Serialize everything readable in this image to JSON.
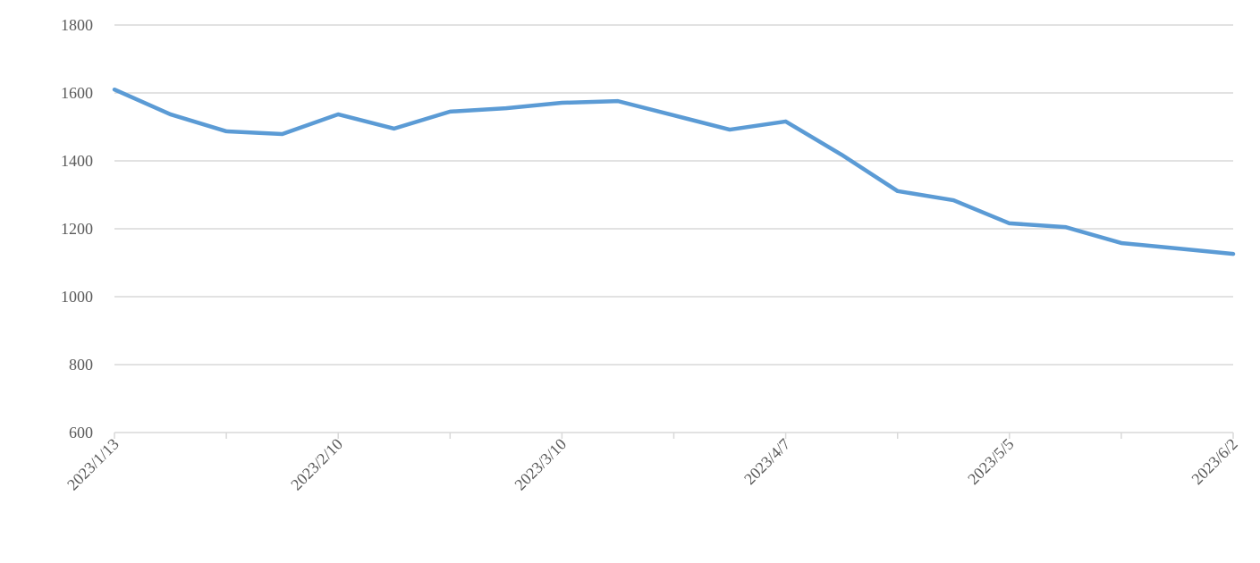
{
  "chart_data": {
    "type": "line",
    "title": "",
    "xlabel": "",
    "ylabel": "",
    "ylim": [
      600,
      1800
    ],
    "yticks": [
      600,
      800,
      1000,
      1200,
      1400,
      1600,
      1800
    ],
    "xtick_labels": [
      "2023/1/13",
      "2023/2/10",
      "2023/3/10",
      "2023/4/7",
      "2023/5/5",
      "2023/6/2"
    ],
    "grid": "horizontal",
    "legend": "none",
    "line_color": "#5B9BD5",
    "x": [
      "2023/1/13",
      "2023/1/20",
      "2023/1/27",
      "2023/2/3",
      "2023/2/10",
      "2023/2/17",
      "2023/2/24",
      "2023/3/3",
      "2023/3/10",
      "2023/3/17",
      "2023/3/24",
      "2023/3/31",
      "2023/4/7",
      "2023/4/14",
      "2023/4/21",
      "2023/4/28",
      "2023/5/5",
      "2023/5/12",
      "2023/5/19",
      "2023/5/26",
      "2023/6/2"
    ],
    "series": [
      {
        "values": [
          1610,
          1537,
          1487,
          1479,
          1537,
          1495,
          1545,
          1555,
          1571,
          1576,
          1534,
          1492,
          1516,
          1418,
          1311,
          1284,
          1216,
          1205,
          1158,
          1142,
          1126
        ]
      }
    ]
  }
}
